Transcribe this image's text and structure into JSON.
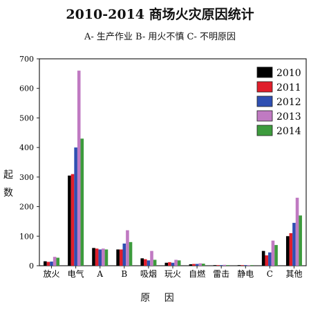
{
  "chart_data": {
    "type": "bar",
    "title": "2010-2014 商场火灾原因统计",
    "subtitle": "A- 生产作业 B- 用火不慎 C- 不明原因",
    "xlabel": "原 因",
    "ylabel": "起数",
    "ylim": [
      0,
      700
    ],
    "yticks": [
      0,
      100,
      200,
      300,
      400,
      500,
      600,
      700
    ],
    "categories": [
      "放火",
      "电气",
      "A",
      "B",
      "吸烟",
      "玩火",
      "自燃",
      "雷击",
      "静电",
      "C",
      "其他"
    ],
    "legend_position": "top-right",
    "series": [
      {
        "name": "2010",
        "color": "#000000",
        "values": [
          15,
          305,
          60,
          55,
          25,
          10,
          5,
          2,
          2,
          50,
          100
        ]
      },
      {
        "name": "2011",
        "color": "#e01e2b",
        "values": [
          13,
          310,
          58,
          55,
          22,
          12,
          6,
          2,
          2,
          35,
          110
        ]
      },
      {
        "name": "2012",
        "color": "#2f4fb2",
        "values": [
          14,
          400,
          55,
          75,
          18,
          10,
          6,
          2,
          2,
          45,
          145
        ]
      },
      {
        "name": "2013",
        "color": "#c07ac2",
        "values": [
          30,
          660,
          58,
          120,
          50,
          20,
          8,
          3,
          2,
          85,
          230
        ]
      },
      {
        "name": "2014",
        "color": "#3d9b3d",
        "values": [
          27,
          430,
          55,
          80,
          20,
          18,
          7,
          2,
          2,
          70,
          170
        ]
      }
    ]
  }
}
